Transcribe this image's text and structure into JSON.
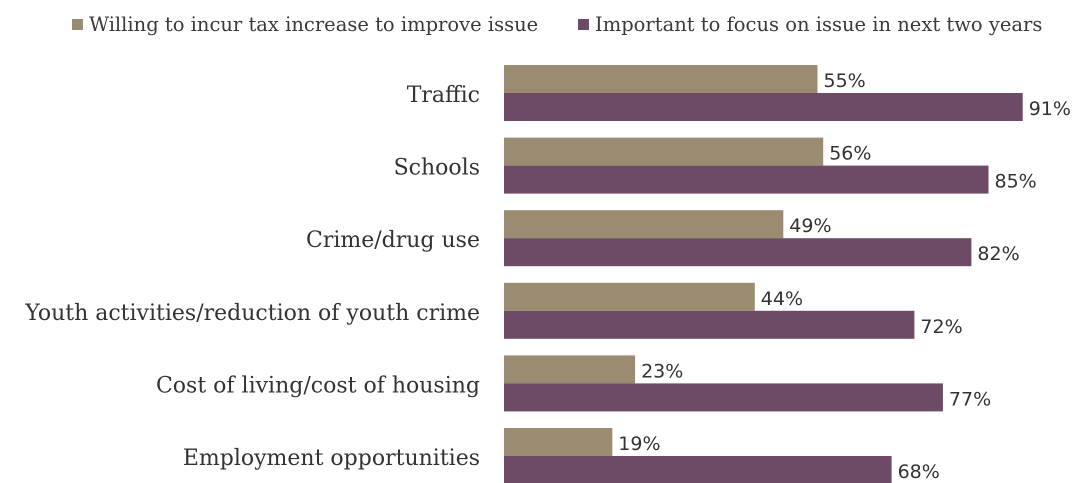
{
  "chart_data": {
    "type": "bar",
    "orientation": "horizontal",
    "title": "",
    "xlabel": "",
    "ylabel": "",
    "xlim": [
      0,
      100
    ],
    "grid": false,
    "legend_position": "top",
    "value_suffix": "%",
    "categories": [
      "Traffic",
      "Schools",
      "Crime/drug use",
      "Youth activities/reduction of youth crime",
      "Cost of living/cost of housing",
      "Employment opportunities"
    ],
    "series": [
      {
        "name": "Willing to incur tax increase to improve issue",
        "color": "#9b8c71",
        "values": [
          55,
          56,
          49,
          44,
          23,
          19
        ],
        "labels": [
          "55%",
          "56%",
          "49%",
          "44%",
          "23%",
          "19%"
        ]
      },
      {
        "name": "Important to focus on issue in next two years",
        "color": "#6d4a66",
        "values": [
          91,
          85,
          82,
          72,
          77,
          68
        ],
        "labels": [
          "91%",
          "85%",
          "82%",
          "72%",
          "77%",
          "68%"
        ]
      }
    ]
  }
}
